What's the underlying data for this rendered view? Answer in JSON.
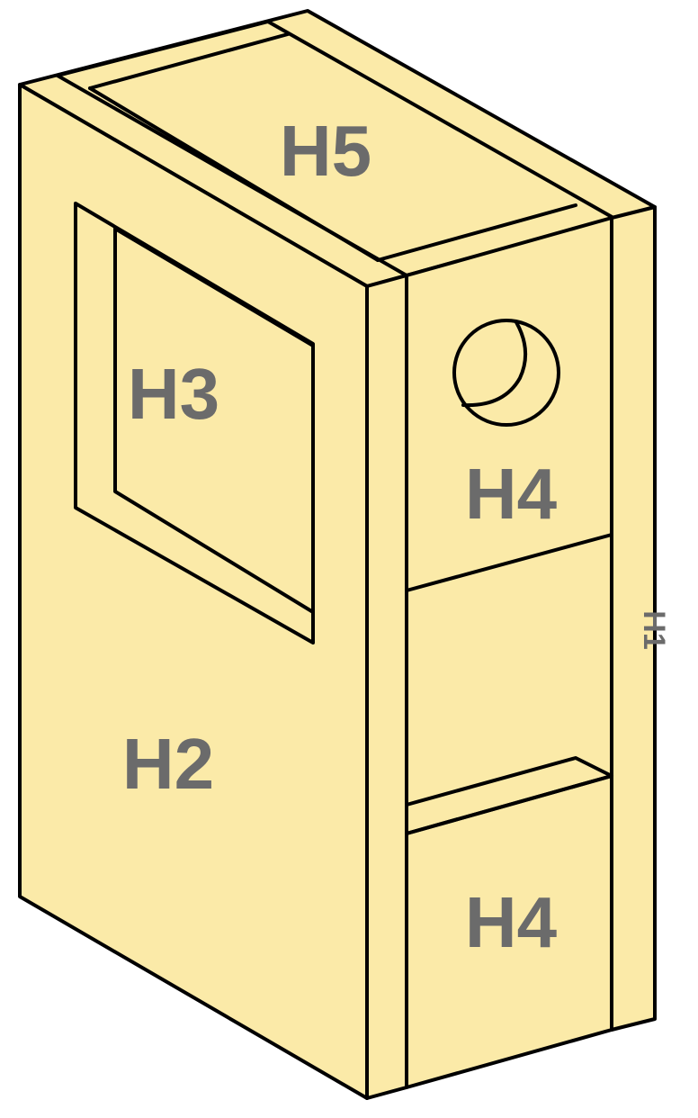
{
  "labels": {
    "top_panel": "H5",
    "window_opening": "H3",
    "left_side_panel": "H2",
    "front_upper_panel": "H4",
    "front_lower_panel": "H4",
    "side_edge": "H1"
  },
  "colors": {
    "panel_fill": "#fbeaa8",
    "outline": "#000000",
    "label_text": "#6b6b6b"
  }
}
